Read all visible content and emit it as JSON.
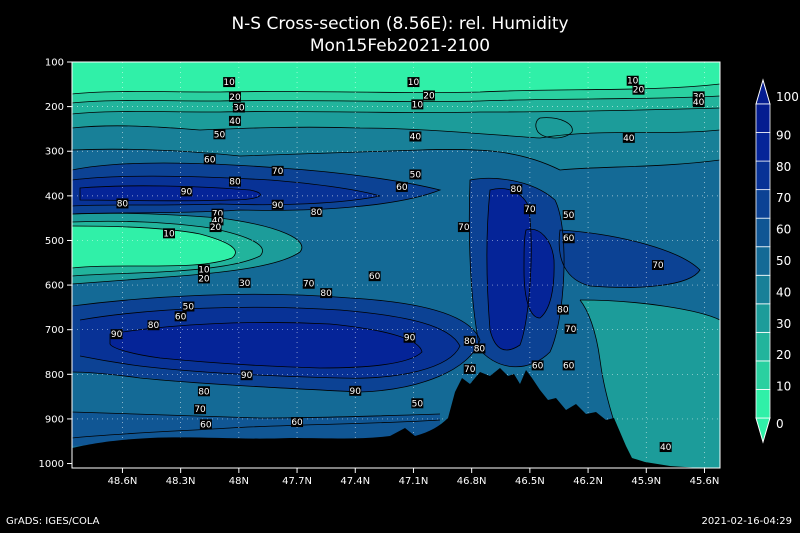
{
  "title_line1": "N-S Cross-section (8.56E): rel. Humidity",
  "title_line2": "Mon15Feb2021-2100",
  "footer_left": "GrADS: IGES/COLA",
  "footer_right": "2021-02-16-04:29",
  "chart_data": {
    "type": "contour",
    "title": "N-S Cross-section (8.56E): rel. Humidity",
    "subtitle": "Mon15Feb2021-2100",
    "x_ticks": [
      "48.6N",
      "48.3N",
      "48N",
      "47.7N",
      "47.4N",
      "47.1N",
      "46.8N",
      "46.5N",
      "46.2N",
      "45.9N",
      "45.6N"
    ],
    "x_tick_values": [
      48.6,
      48.3,
      48.0,
      47.7,
      47.4,
      47.1,
      46.8,
      46.5,
      46.2,
      45.9,
      45.6
    ],
    "xlim": [
      48.86,
      45.52
    ],
    "y_ticks": [
      "100",
      "200",
      "300",
      "400",
      "500",
      "600",
      "700",
      "800",
      "900",
      "1000"
    ],
    "y_tick_values": [
      100,
      200,
      300,
      400,
      500,
      600,
      700,
      800,
      900,
      1000
    ],
    "ylim": [
      1010,
      100
    ],
    "grid": true,
    "colorbar": {
      "levels": [
        "0",
        "10",
        "20",
        "30",
        "40",
        "50",
        "60",
        "70",
        "80",
        "90",
        "100"
      ],
      "colors": [
        "#30f0a8",
        "#2ad0a0",
        "#22b49c",
        "#1c9c9a",
        "#188098",
        "#146a96",
        "#105694",
        "#0c4294",
        "#083296",
        "#052498",
        "#041c90"
      ]
    },
    "contour_labels": [
      {
        "text": "10",
        "x": 48.05,
        "y": 145
      },
      {
        "text": "20",
        "x": 48.02,
        "y": 178
      },
      {
        "text": "30",
        "x": 48.0,
        "y": 202
      },
      {
        "text": "40",
        "x": 48.02,
        "y": 232
      },
      {
        "text": "50",
        "x": 48.1,
        "y": 262
      },
      {
        "text": "60",
        "x": 48.15,
        "y": 318
      },
      {
        "text": "70",
        "x": 47.8,
        "y": 344
      },
      {
        "text": "80",
        "x": 48.02,
        "y": 368
      },
      {
        "text": "90",
        "x": 48.27,
        "y": 390
      },
      {
        "text": "80",
        "x": 48.6,
        "y": 417
      },
      {
        "text": "90",
        "x": 47.8,
        "y": 420
      },
      {
        "text": "80",
        "x": 47.6,
        "y": 436
      },
      {
        "text": "70",
        "x": 48.11,
        "y": 440
      },
      {
        "text": "40",
        "x": 48.11,
        "y": 455
      },
      {
        "text": "20",
        "x": 48.12,
        "y": 470
      },
      {
        "text": "10",
        "x": 48.36,
        "y": 484
      },
      {
        "text": "10",
        "x": 48.18,
        "y": 565
      },
      {
        "text": "20",
        "x": 48.18,
        "y": 585
      },
      {
        "text": "30",
        "x": 47.97,
        "y": 595
      },
      {
        "text": "70",
        "x": 47.64,
        "y": 597
      },
      {
        "text": "80",
        "x": 47.55,
        "y": 618
      },
      {
        "text": "50",
        "x": 48.26,
        "y": 648
      },
      {
        "text": "60",
        "x": 48.3,
        "y": 670
      },
      {
        "text": "80",
        "x": 48.44,
        "y": 690
      },
      {
        "text": "90",
        "x": 48.63,
        "y": 710
      },
      {
        "text": "90",
        "x": 47.96,
        "y": 802
      },
      {
        "text": "80",
        "x": 48.18,
        "y": 838
      },
      {
        "text": "70",
        "x": 48.2,
        "y": 878
      },
      {
        "text": "60",
        "x": 48.17,
        "y": 912
      },
      {
        "text": "60",
        "x": 47.7,
        "y": 907
      },
      {
        "text": "10",
        "x": 47.1,
        "y": 145
      },
      {
        "text": "20",
        "x": 47.02,
        "y": 175
      },
      {
        "text": "10",
        "x": 47.08,
        "y": 195
      },
      {
        "text": "40",
        "x": 47.09,
        "y": 267
      },
      {
        "text": "50",
        "x": 47.09,
        "y": 352
      },
      {
        "text": "60",
        "x": 47.16,
        "y": 380
      },
      {
        "text": "60",
        "x": 47.3,
        "y": 580
      },
      {
        "text": "90",
        "x": 47.12,
        "y": 718
      },
      {
        "text": "90",
        "x": 47.4,
        "y": 837
      },
      {
        "text": "50",
        "x": 47.08,
        "y": 865
      },
      {
        "text": "70",
        "x": 46.84,
        "y": 470
      },
      {
        "text": "80",
        "x": 46.81,
        "y": 725
      },
      {
        "text": "80",
        "x": 46.76,
        "y": 742
      },
      {
        "text": "70",
        "x": 46.81,
        "y": 788
      },
      {
        "text": "80",
        "x": 46.57,
        "y": 385
      },
      {
        "text": "70",
        "x": 46.5,
        "y": 430
      },
      {
        "text": "50",
        "x": 46.3,
        "y": 443
      },
      {
        "text": "60",
        "x": 46.3,
        "y": 495
      },
      {
        "text": "80",
        "x": 46.33,
        "y": 655
      },
      {
        "text": "70",
        "x": 46.29,
        "y": 698
      },
      {
        "text": "60",
        "x": 46.46,
        "y": 780
      },
      {
        "text": "60",
        "x": 46.3,
        "y": 780
      },
      {
        "text": "10",
        "x": 45.97,
        "y": 142
      },
      {
        "text": "20",
        "x": 45.94,
        "y": 162
      },
      {
        "text": "30",
        "x": 45.63,
        "y": 177
      },
      {
        "text": "40",
        "x": 45.63,
        "y": 190
      },
      {
        "text": "40",
        "x": 45.99,
        "y": 270
      },
      {
        "text": "70",
        "x": 45.84,
        "y": 555
      },
      {
        "text": "40",
        "x": 45.8,
        "y": 963
      }
    ]
  }
}
